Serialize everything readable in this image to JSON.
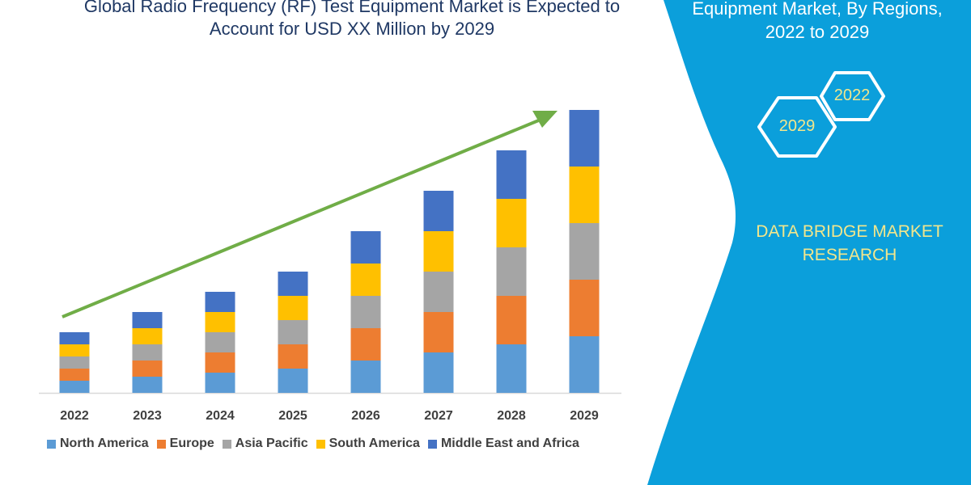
{
  "header": {
    "title_lines": [
      "Global Radio Frequency (RF) Test Equipment Market is Expected to",
      "Account for USD XX Million by 2029"
    ]
  },
  "side_panel": {
    "title_lines": [
      "Equipment Market, By Regions,",
      "2022 to 2029"
    ],
    "hexagons": [
      "2022",
      "2029"
    ],
    "brand_lines": [
      "DATA BRIDGE MARKET",
      "RESEARCH"
    ],
    "panel_color": "#0b9fdb",
    "brand_color": "#f2e68c"
  },
  "chart_data": {
    "type": "bar",
    "stacked": true,
    "categories": [
      "2022",
      "2023",
      "2024",
      "2025",
      "2026",
      "2027",
      "2028",
      "2029"
    ],
    "series": [
      {
        "name": "North America",
        "color": "#5b9bd5",
        "values": [
          15,
          20,
          25,
          30,
          40,
          50,
          60,
          70
        ]
      },
      {
        "name": "Europe",
        "color": "#ed7d31",
        "values": [
          15,
          20,
          25,
          30,
          40,
          50,
          60,
          70
        ]
      },
      {
        "name": "Asia Pacific",
        "color": "#a5a5a5",
        "values": [
          15,
          20,
          25,
          30,
          40,
          50,
          60,
          70
        ]
      },
      {
        "name": "South America",
        "color": "#ffc000",
        "values": [
          15,
          20,
          25,
          30,
          40,
          50,
          60,
          70
        ]
      },
      {
        "name": "Middle East and Africa",
        "color": "#4472c4",
        "values": [
          15,
          20,
          25,
          30,
          40,
          50,
          60,
          70
        ]
      }
    ],
    "ylim": [
      0,
      360
    ],
    "y_axis_shown": false,
    "grid": false,
    "legend_position": "bottom",
    "trend_arrow": {
      "color": "#70ad47",
      "direction": "up"
    }
  }
}
